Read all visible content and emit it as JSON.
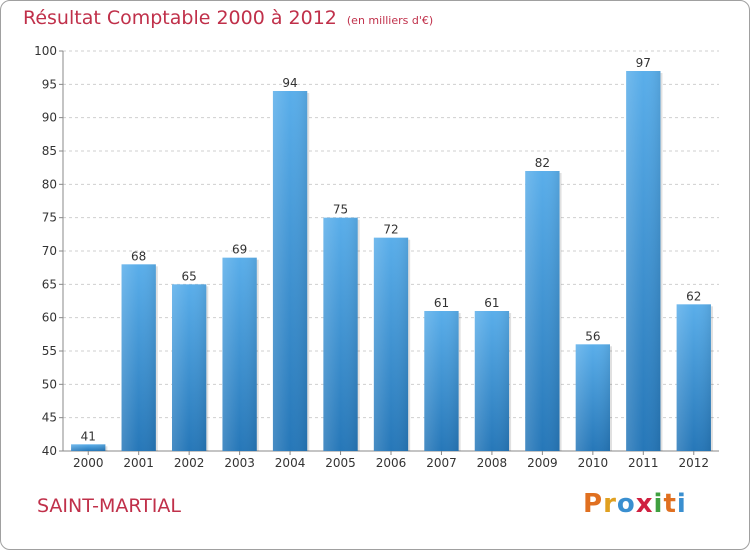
{
  "title": "Résultat Comptable 2000 à 2012",
  "subtitle": "(en milliers d'€)",
  "commune": "SAINT-MARTIAL",
  "logo": {
    "text": "Proxiti",
    "letter_colors": [
      "#e07020",
      "#e0a020",
      "#3a8fd0",
      "#d02040",
      "#40a040",
      "#e07020",
      "#3a8fd0"
    ]
  },
  "colors": {
    "bar_light": "#5aaeea",
    "bar_dark": "#2677b8",
    "title": "#c0304a",
    "grid": "#cfcfcf"
  },
  "chart_data": {
    "type": "bar",
    "categories": [
      "2000",
      "2001",
      "2002",
      "2003",
      "2004",
      "2005",
      "2006",
      "2007",
      "2008",
      "2009",
      "2010",
      "2011",
      "2012"
    ],
    "values": [
      41,
      68,
      65,
      69,
      94,
      75,
      72,
      61,
      61,
      82,
      56,
      97,
      62
    ],
    "ylim": [
      40,
      100
    ],
    "yticks": [
      40,
      45,
      50,
      55,
      60,
      65,
      70,
      75,
      80,
      85,
      90,
      95,
      100
    ],
    "grid": true,
    "title": "Résultat Comptable 2000 à 2012",
    "xlabel": "",
    "ylabel": ""
  }
}
